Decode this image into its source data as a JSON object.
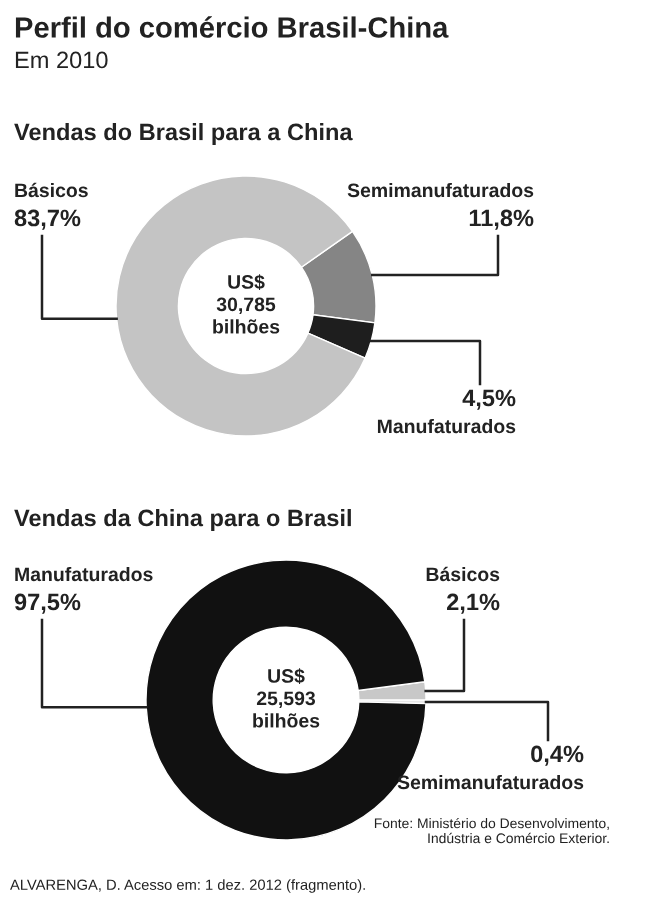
{
  "chart_data": [
    {
      "type": "other",
      "title": "Perfil do comércio Brasil-China",
      "subtitle": "Em 2010"
    },
    {
      "type": "donut",
      "title": "Vendas do Brasil para a China",
      "categories": [
        "Semimanufaturados",
        "Manufaturados",
        "Básicos"
      ],
      "values": [
        11.8,
        4.5,
        83.7
      ],
      "value_labels": [
        "11,8%",
        "4,5%",
        "83,7%"
      ],
      "colors": [
        "#858585",
        "#1e1e1e",
        "#c4c4c4"
      ],
      "annotations": [
        "US$\n30,785\nbilhões"
      ]
    },
    {
      "type": "donut",
      "title": "Vendas da China para o Brasil",
      "categories": [
        "Básicos",
        "Semimanufaturados",
        "Manufaturados"
      ],
      "values": [
        2.1,
        0.4,
        97.5
      ],
      "value_labels": [
        "2,1%",
        "0,4%",
        "97,5%"
      ],
      "colors": [
        "#c8c8c8",
        "#e6e6e6",
        "#111111"
      ],
      "annotations": [
        "US$\n25,593\nbilhões",
        "Fonte: Ministério do Desenvolvimento,\nIndústria e Comércio Exterior.",
        "ALVARENGA, D. Acesso em: 1 dez. 2012 (fragmento)."
      ]
    }
  ]
}
